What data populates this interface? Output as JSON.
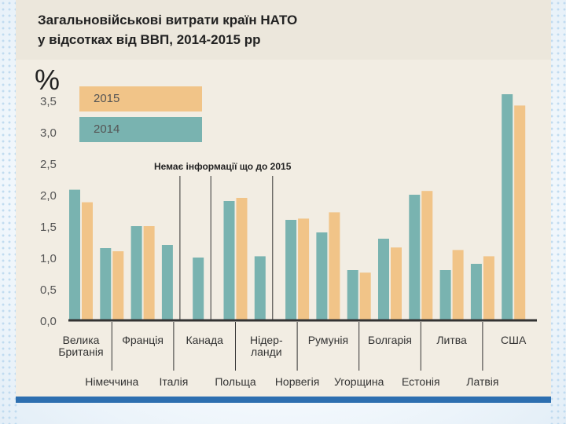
{
  "title": {
    "line1": "Загальновійськові витрати  країн НАТО",
    "line2": "у відсотках від ВВП, 2014-2015 рр"
  },
  "colors": {
    "series_2014": "#79b3b0",
    "series_2015": "#f1c488",
    "axis": "#333333",
    "bottom_bar": "#2d6fb0"
  },
  "chart_data": {
    "type": "bar",
    "title": "Загальновійськові витрати  країн НАТО у відсотках від ВВП, 2014-2015 рр",
    "ylabel": "%",
    "xlabel": "",
    "ylim": [
      0,
      3.5
    ],
    "yticks": [
      "0,0",
      "0,5",
      "1,0",
      "1,5",
      "2,0",
      "2,5",
      "3,0",
      "3,5"
    ],
    "legend": [
      "2015",
      "2014"
    ],
    "legend_position": "top-left",
    "annotation": "Немає інформації що до 2015",
    "categories": [
      "Велика Британія",
      "Німеччина",
      "Франція",
      "Італія",
      "Канада",
      "Польща",
      "Нідерланди",
      "Норвегія",
      "Румунія",
      "Угорщина",
      "Болгарія",
      "Естонія",
      "Литва",
      "Латвія",
      "США"
    ],
    "category_labels": [
      [
        "Велика",
        "Британія"
      ],
      [
        "Німеччина"
      ],
      [
        "Франція"
      ],
      [
        "Італія"
      ],
      [
        "Канада"
      ],
      [
        "Польща"
      ],
      [
        "Нідер-",
        "ланди"
      ],
      [
        "Норвегія"
      ],
      [
        "Румунія"
      ],
      [
        "Угорщина"
      ],
      [
        "Болгарія"
      ],
      [
        "Естонія"
      ],
      [
        "Литва"
      ],
      [
        "Латвія"
      ],
      [
        "США"
      ]
    ],
    "series": [
      {
        "name": "2014",
        "values": [
          2.08,
          1.15,
          1.5,
          1.2,
          1.0,
          1.9,
          1.02,
          1.6,
          1.4,
          0.8,
          1.3,
          2.0,
          0.8,
          0.9,
          3.6
        ]
      },
      {
        "name": "2015",
        "values": [
          1.88,
          1.1,
          1.5,
          null,
          null,
          1.95,
          null,
          1.62,
          1.72,
          0.76,
          1.16,
          2.06,
          1.12,
          1.02,
          3.42
        ]
      }
    ]
  }
}
